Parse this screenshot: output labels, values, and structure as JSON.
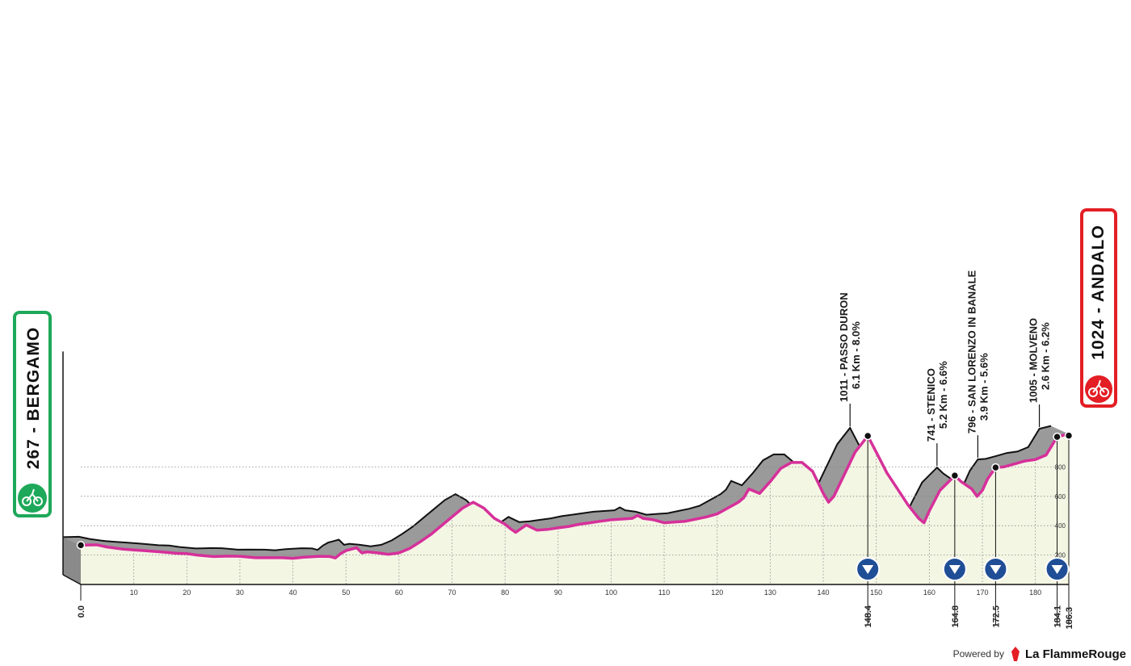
{
  "chart_data": {
    "type": "area",
    "x_unit": "km",
    "y_unit": "m",
    "xlim": [
      0,
      186.3
    ],
    "ylim": [
      0,
      1100
    ],
    "x_ticks": [
      0,
      10,
      20,
      30,
      40,
      50,
      60,
      70,
      80,
      90,
      100,
      110,
      120,
      130,
      140,
      150,
      160,
      170,
      180
    ],
    "x_tick_labels": [
      "0",
      "10",
      "20",
      "30",
      "40",
      "50",
      "60",
      "70",
      "80",
      "90",
      "100",
      "110",
      "120",
      "130",
      "140",
      "150",
      "160",
      "170",
      "180"
    ],
    "y_ticks": [
      200,
      400,
      600,
      800
    ],
    "y_tick_labels": [
      "200",
      "400",
      "600",
      "800"
    ],
    "start": {
      "altitude": "267",
      "name": "BERGAMO",
      "label": "267 - BERGAMO",
      "km": "0.0"
    },
    "finish": {
      "altitude": "1024",
      "name": "ANDALO",
      "label": "1024 - ANDALO",
      "km": "186.3"
    },
    "climbs": [
      {
        "km": 148.4,
        "km_label": "148.4",
        "line1": "1011 - PASSO DURON",
        "line2": "6.1 Km - 8.0%",
        "altitude": 1011
      },
      {
        "km": 164.8,
        "km_label": "164.8",
        "line1": "741 - STENICO",
        "line2": "5.2 Km - 6.6%",
        "altitude": 741
      },
      {
        "km": 172.5,
        "km_label": "172.5",
        "line1": "796 - SAN LORENZO IN BANALE",
        "line2": "3.9 Km - 5.6%",
        "altitude": 796
      },
      {
        "km": 184.1,
        "km_label": "184.1",
        "line1": "1005 - MOLVENO",
        "line2": "2.6 Km - 6.2%",
        "altitude": 1005
      }
    ],
    "profile": {
      "km": [
        0,
        3,
        5,
        8,
        10,
        12,
        15,
        18,
        20,
        22,
        25,
        28,
        30,
        33,
        35,
        38,
        40,
        42,
        45,
        47,
        48,
        49,
        50,
        51,
        52,
        53,
        54,
        56,
        58,
        60,
        62,
        64,
        66,
        68,
        70,
        72,
        74,
        76,
        78,
        80,
        81,
        82,
        84,
        86,
        88,
        90,
        92,
        94,
        96,
        98,
        100,
        102,
        104,
        105,
        106,
        108,
        110,
        112,
        114,
        116,
        118,
        120,
        122,
        124,
        125,
        126,
        128,
        130,
        132,
        134,
        136,
        138,
        140,
        141,
        142,
        144,
        146,
        148.4,
        150,
        152,
        154,
        156,
        158,
        159,
        160,
        162,
        164.8,
        166,
        168,
        169,
        170,
        171,
        172.5,
        174,
        176,
        178,
        180,
        182,
        184.1,
        186.3
      ],
      "altitude": [
        267,
        270,
        255,
        240,
        235,
        230,
        222,
        212,
        210,
        200,
        190,
        193,
        192,
        182,
        183,
        182,
        178,
        185,
        192,
        190,
        180,
        210,
        230,
        240,
        250,
        215,
        222,
        215,
        205,
        215,
        245,
        290,
        340,
        400,
        460,
        520,
        560,
        520,
        450,
        410,
        380,
        355,
        405,
        370,
        375,
        385,
        395,
        410,
        420,
        430,
        440,
        445,
        450,
        470,
        450,
        440,
        420,
        425,
        430,
        445,
        460,
        480,
        520,
        560,
        590,
        650,
        620,
        700,
        790,
        830,
        830,
        770,
        620,
        560,
        600,
        750,
        900,
        1011,
        900,
        760,
        650,
        540,
        450,
        420,
        500,
        640,
        741,
        700,
        650,
        600,
        640,
        720,
        796,
        800,
        820,
        840,
        850,
        880,
        1005,
        1024
      ]
    }
  },
  "footer": {
    "powered_by": "Powered by",
    "brand": "La FlammeRouge"
  },
  "colors": {
    "profile_fill": "#f4f6e4",
    "elevation_band": "#9a9a9a",
    "route_line": "#d6309a",
    "start_badge": "#1ea85a",
    "finish_badge": "#e31e24",
    "climb_marker": "#1f4e96"
  }
}
